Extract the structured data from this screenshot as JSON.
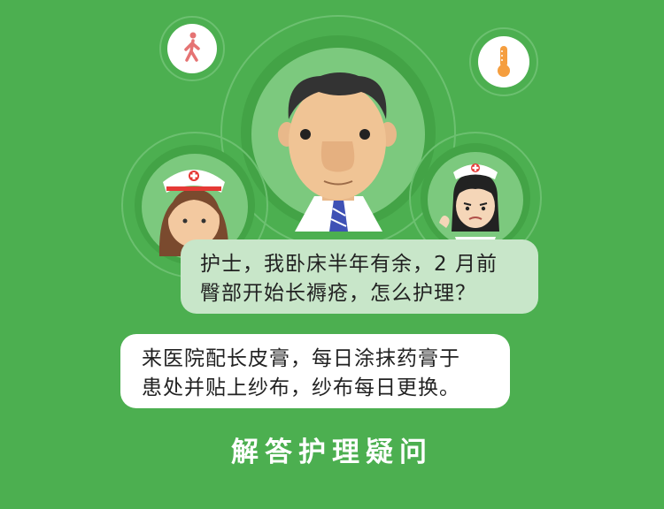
{
  "question": {
    "lines": [
      "护士，我卧床半年有余，2 月前",
      "臀部开始长褥疮，怎么护理？"
    ]
  },
  "answer": {
    "lines": [
      "来医院配长皮膏，每日涂抹药膏于",
      "患处并贴上纱布，纱布每日更换。"
    ]
  },
  "title": "解答护理疑问",
  "colors": {
    "background": "#4caf50",
    "question_bubble": "#c8e6c9",
    "answer_bubble": "#ffffff",
    "walking_icon": "#e57373",
    "thermometer_icon": "#f59e3f"
  },
  "icons": [
    "walking-person-icon",
    "thermometer-icon"
  ]
}
